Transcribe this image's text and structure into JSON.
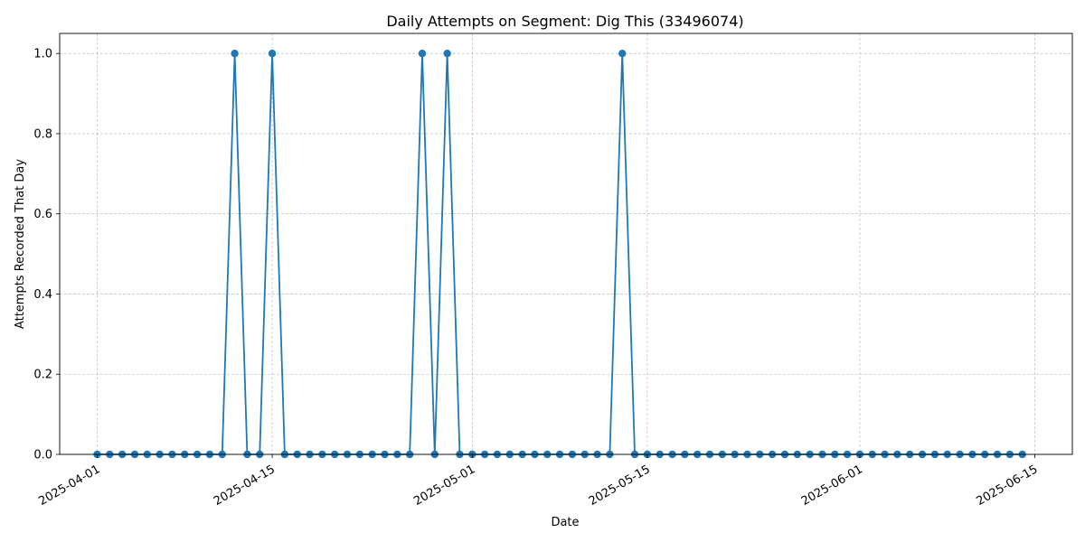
{
  "chart_data": {
    "type": "line",
    "title": "Daily Attempts on Segment: Dig This (33496074)",
    "xlabel": "Date",
    "ylabel": "Attempts Recorded That Day",
    "x_start": "2025-04-01",
    "x_end": "2025-06-14",
    "xlim": [
      "2025-03-29",
      "2025-06-18"
    ],
    "ylim": [
      0,
      1.05
    ],
    "x_ticks": [
      "2025-04-01",
      "2025-04-15",
      "2025-05-01",
      "2025-05-15",
      "2025-06-01",
      "2025-06-15"
    ],
    "y_ticks": [
      "0.0",
      "0.2",
      "0.4",
      "0.6",
      "0.8",
      "1.0"
    ],
    "grid": true,
    "color": "#1f77b4",
    "marker": "circle",
    "series": [
      {
        "x": [
          "2025-04-01",
          "2025-04-02",
          "2025-04-03",
          "2025-04-04",
          "2025-04-05",
          "2025-04-06",
          "2025-04-07",
          "2025-04-08",
          "2025-04-09",
          "2025-04-10",
          "2025-04-11",
          "2025-04-12",
          "2025-04-13",
          "2025-04-14",
          "2025-04-15",
          "2025-04-16",
          "2025-04-17",
          "2025-04-18",
          "2025-04-19",
          "2025-04-20",
          "2025-04-21",
          "2025-04-22",
          "2025-04-23",
          "2025-04-24",
          "2025-04-25",
          "2025-04-26",
          "2025-04-27",
          "2025-04-28",
          "2025-04-29",
          "2025-04-30",
          "2025-05-01",
          "2025-05-02",
          "2025-05-03",
          "2025-05-04",
          "2025-05-05",
          "2025-05-06",
          "2025-05-07",
          "2025-05-08",
          "2025-05-09",
          "2025-05-10",
          "2025-05-11",
          "2025-05-12",
          "2025-05-13",
          "2025-05-14",
          "2025-05-15",
          "2025-05-16",
          "2025-05-17",
          "2025-05-18",
          "2025-05-19",
          "2025-05-20",
          "2025-05-21",
          "2025-05-22",
          "2025-05-23",
          "2025-05-24",
          "2025-05-25",
          "2025-05-26",
          "2025-05-27",
          "2025-05-28",
          "2025-05-29",
          "2025-05-30",
          "2025-05-31",
          "2025-06-01",
          "2025-06-02",
          "2025-06-03",
          "2025-06-04",
          "2025-06-05",
          "2025-06-06",
          "2025-06-07",
          "2025-06-08",
          "2025-06-09",
          "2025-06-10",
          "2025-06-11",
          "2025-06-12",
          "2025-06-13",
          "2025-06-14"
        ],
        "values": [
          0,
          0,
          0,
          0,
          0,
          0,
          0,
          0,
          0,
          0,
          0,
          1,
          0,
          0,
          1,
          0,
          0,
          0,
          0,
          0,
          0,
          0,
          0,
          0,
          0,
          0,
          1,
          0,
          1,
          0,
          0,
          0,
          0,
          0,
          0,
          0,
          0,
          0,
          0,
          0,
          0,
          0,
          1,
          0,
          0,
          0,
          0,
          0,
          0,
          0,
          0,
          0,
          0,
          0,
          0,
          0,
          0,
          0,
          0,
          0,
          0,
          0,
          0,
          0,
          0,
          0,
          0,
          0,
          0,
          0,
          0,
          0,
          0,
          0,
          0
        ]
      }
    ]
  }
}
